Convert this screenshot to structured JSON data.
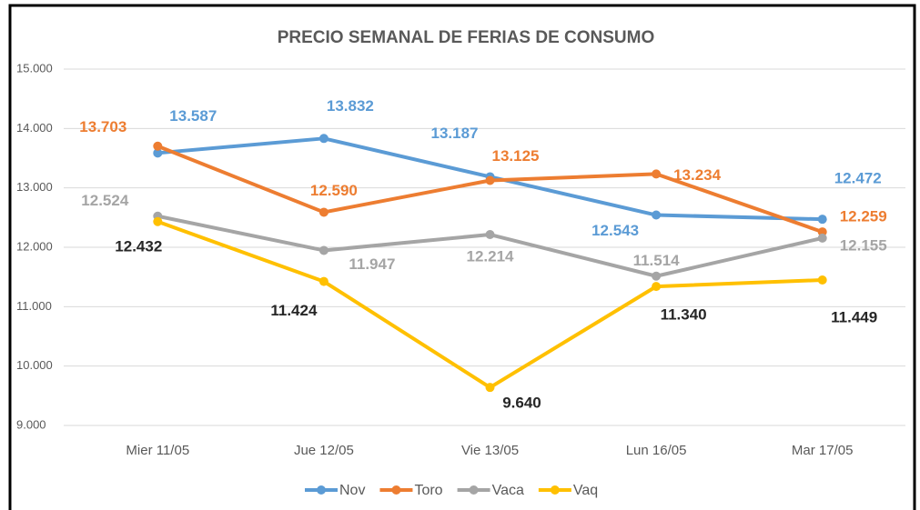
{
  "chart_data": {
    "type": "line",
    "title": "PRECIO SEMANAL DE FERIAS DE CONSUMO",
    "categories": [
      "Mier 11/05",
      "Jue 12/05",
      "Vie 13/05",
      "Lun 16/05",
      "Mar 17/05"
    ],
    "series": [
      {
        "name": "Nov",
        "color": "#5b9bd5",
        "values": [
          13587,
          13832,
          13187,
          12543,
          12472
        ],
        "value_labels": [
          "13.587",
          "13.832",
          "13.187",
          "12.543",
          "12.472"
        ]
      },
      {
        "name": "Toro",
        "color": "#ed7d31",
        "values": [
          13703,
          12590,
          13125,
          13234,
          12259
        ],
        "value_labels": [
          "13.703",
          "12.590",
          "13.125",
          "13.234",
          "12.259"
        ]
      },
      {
        "name": "Vaca",
        "color": "#a5a5a5",
        "values": [
          12524,
          11947,
          12214,
          11514,
          12155
        ],
        "value_labels": [
          "12.524",
          "11.947",
          "12.214",
          "11.514",
          "12.155"
        ]
      },
      {
        "name": "Vaq",
        "color": "#ffc000",
        "values": [
          12432,
          11424,
          9640,
          11340,
          11449
        ],
        "value_labels": [
          "12.432",
          "11.424",
          "9.640",
          "11.340",
          "11.449"
        ]
      }
    ],
    "ylim": [
      9000,
      15000
    ],
    "yticks": [
      {
        "value": 9000,
        "label": "9.000"
      },
      {
        "value": 10000,
        "label": "10.000"
      },
      {
        "value": 11000,
        "label": "11.000"
      },
      {
        "value": 12000,
        "label": "12.000"
      },
      {
        "value": 13000,
        "label": "13.000"
      },
      {
        "value": 14000,
        "label": "14.000"
      },
      {
        "value": 15000,
        "label": "15.000"
      }
    ],
    "grid": true,
    "legend": "bottom"
  }
}
